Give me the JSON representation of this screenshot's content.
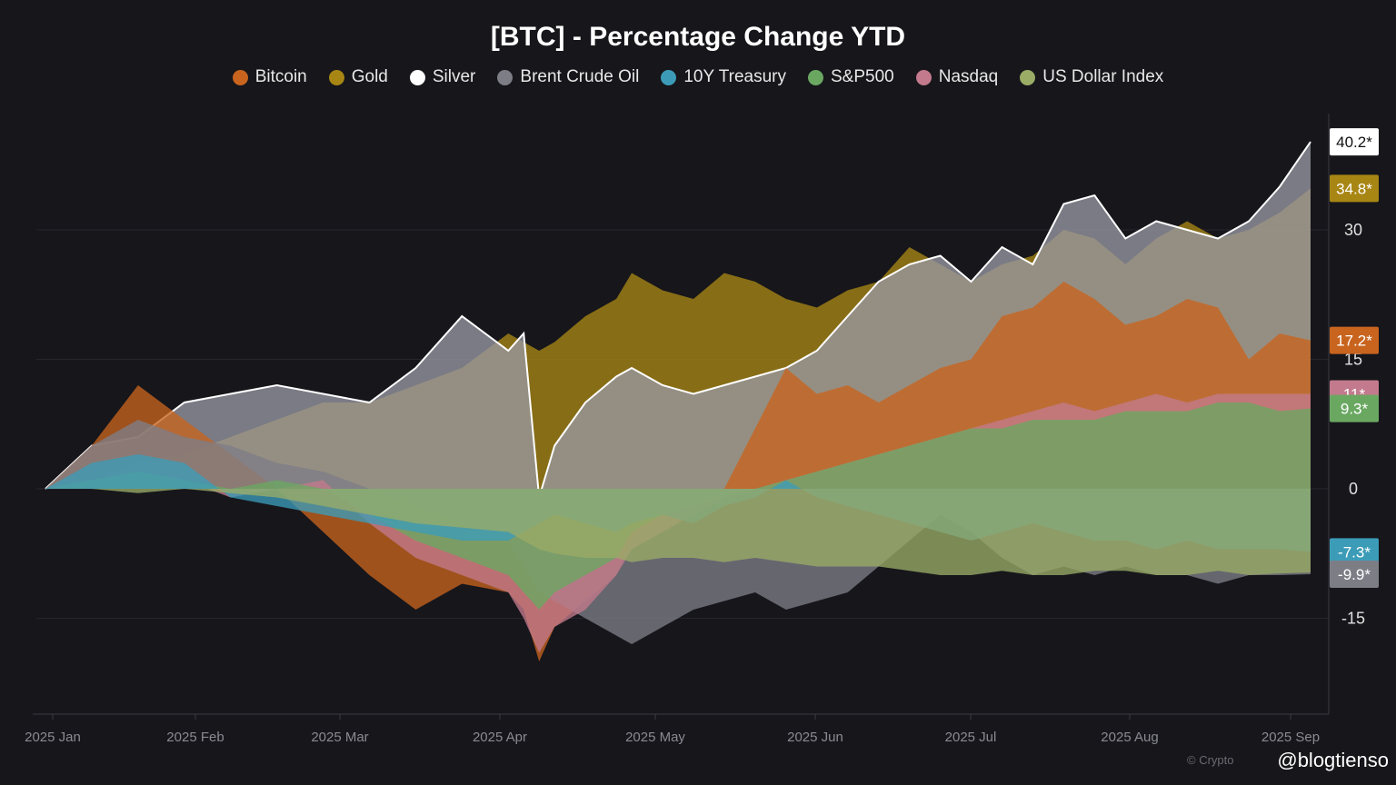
{
  "chart_data": {
    "type": "area",
    "title": "[BTC] - Percentage Change YTD",
    "x_labels": [
      "2025 Jan",
      "2025 Feb",
      "2025 Mar",
      "2025 Apr",
      "2025 May",
      "2025 Jun",
      "2025 Jul",
      "2025 Aug",
      "2025 Sep"
    ],
    "y_ticks": [
      30,
      15,
      0,
      -15
    ],
    "ylim": [
      -26,
      42
    ],
    "x_range": [
      0,
      8.2
    ],
    "grid": true,
    "legend_position": "top-center",
    "series": [
      {
        "name": "Gold",
        "color": "#a88614",
        "end_label": "34.8*",
        "points": [
          [
            0,
            0
          ],
          [
            0.3,
            1
          ],
          [
            0.6,
            3
          ],
          [
            0.9,
            4
          ],
          [
            1.2,
            6
          ],
          [
            1.5,
            8
          ],
          [
            1.8,
            10
          ],
          [
            2.1,
            10
          ],
          [
            2.4,
            12
          ],
          [
            2.7,
            14
          ],
          [
            3.0,
            18
          ],
          [
            3.1,
            17
          ],
          [
            3.2,
            16
          ],
          [
            3.3,
            17
          ],
          [
            3.5,
            20
          ],
          [
            3.7,
            22
          ],
          [
            3.8,
            25
          ],
          [
            4.0,
            23
          ],
          [
            4.2,
            22
          ],
          [
            4.4,
            25
          ],
          [
            4.6,
            24
          ],
          [
            4.8,
            22
          ],
          [
            5.0,
            21
          ],
          [
            5.2,
            23
          ],
          [
            5.4,
            24
          ],
          [
            5.6,
            28
          ],
          [
            5.8,
            26
          ],
          [
            6.0,
            24
          ],
          [
            6.2,
            26
          ],
          [
            6.4,
            27
          ],
          [
            6.6,
            30
          ],
          [
            6.8,
            29
          ],
          [
            7.0,
            26
          ],
          [
            7.2,
            29
          ],
          [
            7.4,
            31
          ],
          [
            7.6,
            29
          ],
          [
            7.8,
            30
          ],
          [
            8.0,
            32
          ],
          [
            8.2,
            34.8
          ]
        ]
      },
      {
        "name": "Silver",
        "color": "#9999a3",
        "end_label": "40.2*",
        "points": [
          [
            0,
            0
          ],
          [
            0.3,
            5
          ],
          [
            0.6,
            6
          ],
          [
            0.9,
            10
          ],
          [
            1.2,
            11
          ],
          [
            1.5,
            12
          ],
          [
            1.8,
            11
          ],
          [
            2.1,
            10
          ],
          [
            2.4,
            14
          ],
          [
            2.7,
            20
          ],
          [
            3.0,
            16
          ],
          [
            3.1,
            18
          ],
          [
            3.2,
            -1
          ],
          [
            3.3,
            5
          ],
          [
            3.5,
            10
          ],
          [
            3.7,
            13
          ],
          [
            3.8,
            14
          ],
          [
            4.0,
            12
          ],
          [
            4.2,
            11
          ],
          [
            4.4,
            12
          ],
          [
            4.6,
            13
          ],
          [
            4.8,
            14
          ],
          [
            5.0,
            16
          ],
          [
            5.2,
            20
          ],
          [
            5.4,
            24
          ],
          [
            5.6,
            26
          ],
          [
            5.8,
            27
          ],
          [
            6.0,
            24
          ],
          [
            6.2,
            28
          ],
          [
            6.4,
            26
          ],
          [
            6.6,
            33
          ],
          [
            6.8,
            34
          ],
          [
            7.0,
            29
          ],
          [
            7.2,
            31
          ],
          [
            7.4,
            30
          ],
          [
            7.6,
            29
          ],
          [
            7.8,
            31
          ],
          [
            8.0,
            35
          ],
          [
            8.2,
            40.2
          ]
        ]
      },
      {
        "name": "Bitcoin",
        "color": "#c8641e",
        "end_label": "17.2*",
        "points": [
          [
            0,
            0
          ],
          [
            0.3,
            5
          ],
          [
            0.6,
            12
          ],
          [
            0.9,
            8
          ],
          [
            1.2,
            4
          ],
          [
            1.5,
            0
          ],
          [
            1.8,
            -5
          ],
          [
            2.1,
            -10
          ],
          [
            2.4,
            -14
          ],
          [
            2.7,
            -11
          ],
          [
            3.0,
            -12
          ],
          [
            3.1,
            -14
          ],
          [
            3.2,
            -20
          ],
          [
            3.3,
            -16
          ],
          [
            3.5,
            -13
          ],
          [
            3.7,
            -10
          ],
          [
            3.8,
            -6
          ],
          [
            4.0,
            -3
          ],
          [
            4.2,
            -2
          ],
          [
            4.4,
            0
          ],
          [
            4.6,
            7
          ],
          [
            4.8,
            14
          ],
          [
            5.0,
            11
          ],
          [
            5.2,
            12
          ],
          [
            5.4,
            10
          ],
          [
            5.6,
            12
          ],
          [
            5.8,
            14
          ],
          [
            6.0,
            15
          ],
          [
            6.2,
            20
          ],
          [
            6.4,
            21
          ],
          [
            6.6,
            24
          ],
          [
            6.8,
            22
          ],
          [
            7.0,
            19
          ],
          [
            7.2,
            20
          ],
          [
            7.4,
            22
          ],
          [
            7.6,
            21
          ],
          [
            7.8,
            15
          ],
          [
            8.0,
            18
          ],
          [
            8.2,
            17.2
          ]
        ]
      },
      {
        "name": "Nasdaq",
        "color": "#c37a8c",
        "end_label": "11*",
        "points": [
          [
            0,
            0
          ],
          [
            0.3,
            1
          ],
          [
            0.6,
            2
          ],
          [
            0.9,
            1
          ],
          [
            1.2,
            -1
          ],
          [
            1.5,
            0
          ],
          [
            1.8,
            1
          ],
          [
            2.1,
            -4
          ],
          [
            2.4,
            -8
          ],
          [
            2.7,
            -10
          ],
          [
            3.0,
            -12
          ],
          [
            3.1,
            -15
          ],
          [
            3.2,
            -19
          ],
          [
            3.3,
            -16
          ],
          [
            3.5,
            -14
          ],
          [
            3.7,
            -10
          ],
          [
            3.8,
            -7
          ],
          [
            4.0,
            -5
          ],
          [
            4.2,
            -3
          ],
          [
            4.4,
            -1
          ],
          [
            4.6,
            0
          ],
          [
            4.8,
            1
          ],
          [
            5.0,
            2
          ],
          [
            5.2,
            3
          ],
          [
            5.4,
            4
          ],
          [
            5.6,
            5
          ],
          [
            5.8,
            6
          ],
          [
            6.0,
            7
          ],
          [
            6.2,
            8
          ],
          [
            6.4,
            9
          ],
          [
            6.6,
            10
          ],
          [
            6.8,
            9
          ],
          [
            7.0,
            10
          ],
          [
            7.2,
            11
          ],
          [
            7.4,
            10
          ],
          [
            7.6,
            11
          ],
          [
            7.8,
            11
          ],
          [
            8.0,
            11
          ],
          [
            8.2,
            11
          ]
        ]
      },
      {
        "name": "S&P500",
        "color": "#6aa862",
        "end_label": "9.3*",
        "points": [
          [
            0,
            0
          ],
          [
            0.3,
            1
          ],
          [
            0.6,
            2
          ],
          [
            0.9,
            1
          ],
          [
            1.2,
            0
          ],
          [
            1.5,
            1
          ],
          [
            1.8,
            0
          ],
          [
            2.1,
            -3
          ],
          [
            2.4,
            -6
          ],
          [
            2.7,
            -8
          ],
          [
            3.0,
            -10
          ],
          [
            3.1,
            -12
          ],
          [
            3.2,
            -14
          ],
          [
            3.3,
            -12
          ],
          [
            3.5,
            -10
          ],
          [
            3.7,
            -8
          ],
          [
            3.8,
            -5
          ],
          [
            4.0,
            -3
          ],
          [
            4.2,
            -2
          ],
          [
            4.4,
            -1
          ],
          [
            4.6,
            0
          ],
          [
            4.8,
            1
          ],
          [
            5.0,
            2
          ],
          [
            5.2,
            3
          ],
          [
            5.4,
            4
          ],
          [
            5.6,
            5
          ],
          [
            5.8,
            6
          ],
          [
            6.0,
            7
          ],
          [
            6.2,
            7
          ],
          [
            6.4,
            8
          ],
          [
            6.6,
            8
          ],
          [
            6.8,
            8
          ],
          [
            7.0,
            9
          ],
          [
            7.2,
            9
          ],
          [
            7.4,
            9
          ],
          [
            7.6,
            10
          ],
          [
            7.8,
            10
          ],
          [
            8.0,
            9
          ],
          [
            8.2,
            9.3
          ]
        ]
      },
      {
        "name": "10Y Treasury",
        "color": "#3c9cb8",
        "end_label": "-7.3*",
        "points": [
          [
            0,
            0
          ],
          [
            0.3,
            3
          ],
          [
            0.6,
            4
          ],
          [
            0.9,
            3
          ],
          [
            1.2,
            -1
          ],
          [
            1.5,
            -2
          ],
          [
            1.8,
            -3
          ],
          [
            2.1,
            -4
          ],
          [
            2.4,
            -5
          ],
          [
            2.7,
            -6
          ],
          [
            3.0,
            -6
          ],
          [
            3.1,
            -5
          ],
          [
            3.2,
            -4
          ],
          [
            3.3,
            -3
          ],
          [
            3.5,
            -4
          ],
          [
            3.7,
            -5
          ],
          [
            3.8,
            -4
          ],
          [
            4.0,
            -3
          ],
          [
            4.2,
            -4
          ],
          [
            4.4,
            -2
          ],
          [
            4.6,
            -1
          ],
          [
            4.8,
            1
          ],
          [
            5.0,
            -1
          ],
          [
            5.2,
            -2
          ],
          [
            5.4,
            -3
          ],
          [
            5.6,
            -4
          ],
          [
            5.8,
            -5
          ],
          [
            6.0,
            -6
          ],
          [
            6.2,
            -5
          ],
          [
            6.4,
            -4
          ],
          [
            6.6,
            -5
          ],
          [
            6.8,
            -6
          ],
          [
            7.0,
            -6
          ],
          [
            7.2,
            -7
          ],
          [
            7.4,
            -6
          ],
          [
            7.6,
            -7
          ],
          [
            7.8,
            -7
          ],
          [
            8.0,
            -7
          ],
          [
            8.2,
            -7.3
          ]
        ]
      },
      {
        "name": "Brent Crude Oil",
        "color": "#7d7d86",
        "end_label": "-9.9*",
        "points": [
          [
            0,
            0
          ],
          [
            0.3,
            5
          ],
          [
            0.6,
            8
          ],
          [
            0.9,
            6
          ],
          [
            1.2,
            5
          ],
          [
            1.5,
            3
          ],
          [
            1.8,
            2
          ],
          [
            2.1,
            0
          ],
          [
            2.4,
            -2
          ],
          [
            2.7,
            -4
          ],
          [
            3.0,
            -6
          ],
          [
            3.1,
            -9
          ],
          [
            3.2,
            -12
          ],
          [
            3.3,
            -13
          ],
          [
            3.5,
            -15
          ],
          [
            3.7,
            -17
          ],
          [
            3.8,
            -18
          ],
          [
            4.0,
            -16
          ],
          [
            4.2,
            -14
          ],
          [
            4.4,
            -13
          ],
          [
            4.6,
            -12
          ],
          [
            4.8,
            -14
          ],
          [
            5.0,
            -13
          ],
          [
            5.2,
            -12
          ],
          [
            5.4,
            -9
          ],
          [
            5.6,
            -6
          ],
          [
            5.8,
            -3
          ],
          [
            6.0,
            -5
          ],
          [
            6.2,
            -8
          ],
          [
            6.4,
            -10
          ],
          [
            6.6,
            -9
          ],
          [
            6.8,
            -10
          ],
          [
            7.0,
            -9
          ],
          [
            7.2,
            -10
          ],
          [
            7.4,
            -10
          ],
          [
            7.6,
            -11
          ],
          [
            7.8,
            -10
          ],
          [
            8.0,
            -10
          ],
          [
            8.2,
            -9.9
          ]
        ]
      },
      {
        "name": "US Dollar Index",
        "color": "#9aac66",
        "end_label": "",
        "points": [
          [
            0,
            0
          ],
          [
            0.3,
            0
          ],
          [
            0.6,
            -0.5
          ],
          [
            0.9,
            0
          ],
          [
            1.2,
            -0.5
          ],
          [
            1.5,
            -1
          ],
          [
            1.8,
            -2
          ],
          [
            2.1,
            -3
          ],
          [
            2.4,
            -4
          ],
          [
            2.7,
            -4.5
          ],
          [
            3.0,
            -5
          ],
          [
            3.1,
            -6
          ],
          [
            3.2,
            -7
          ],
          [
            3.3,
            -7.5
          ],
          [
            3.5,
            -8
          ],
          [
            3.7,
            -8
          ],
          [
            3.8,
            -8.5
          ],
          [
            4.0,
            -8
          ],
          [
            4.2,
            -8
          ],
          [
            4.4,
            -8.5
          ],
          [
            4.6,
            -8
          ],
          [
            4.8,
            -8.5
          ],
          [
            5.0,
            -9
          ],
          [
            5.2,
            -9
          ],
          [
            5.4,
            -9
          ],
          [
            5.6,
            -9.5
          ],
          [
            5.8,
            -10
          ],
          [
            6.0,
            -10
          ],
          [
            6.2,
            -9.5
          ],
          [
            6.4,
            -10
          ],
          [
            6.6,
            -10
          ],
          [
            6.8,
            -9.5
          ],
          [
            7.0,
            -9.5
          ],
          [
            7.2,
            -10
          ],
          [
            7.4,
            -10
          ],
          [
            7.6,
            -9.5
          ],
          [
            7.8,
            -10
          ],
          [
            8.0,
            -9.8
          ],
          [
            8.2,
            -9.7
          ]
        ]
      }
    ]
  },
  "watermark": "© Crypto",
  "handle": "@blogtienso"
}
